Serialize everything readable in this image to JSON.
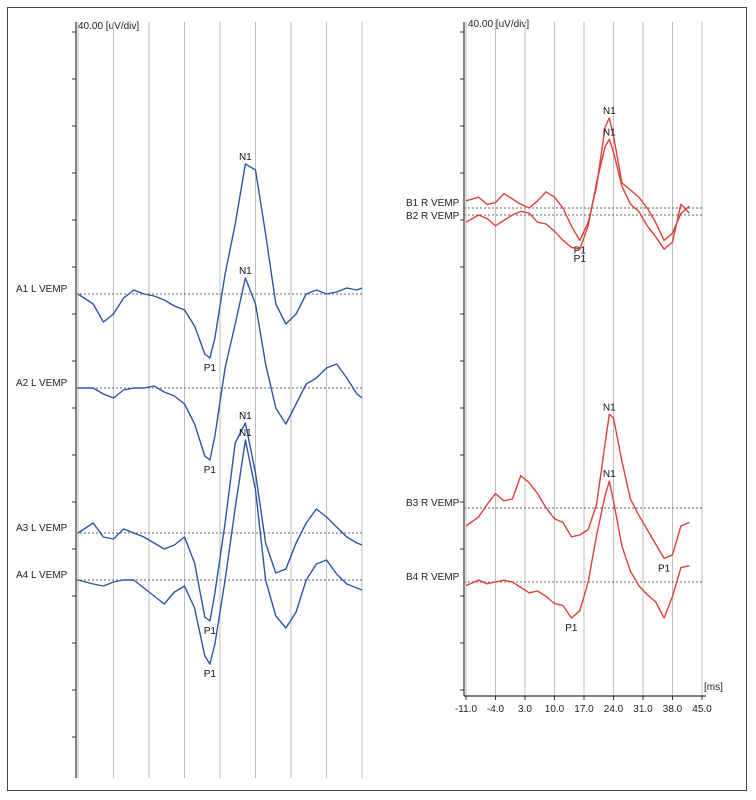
{
  "left_panel": {
    "scale_label": "40.00 [uV/div]",
    "traces": [
      {
        "label": "A1 L VEMP",
        "peaks": [
          "N1",
          "P1"
        ]
      },
      {
        "label": "A2 L VEMP",
        "peaks": [
          "N1",
          "P1"
        ]
      },
      {
        "label": "A3 L VEMP",
        "peaks": [
          "N1",
          "P1"
        ]
      },
      {
        "label": "A4 L VEMP",
        "peaks": [
          "N1",
          "P1"
        ]
      }
    ]
  },
  "right_panel": {
    "scale_label": "40.00 [uV/div]",
    "x_unit": "[ms]",
    "traces": [
      {
        "label": "B1 R VEMP",
        "peaks": [
          "N1",
          "P1"
        ]
      },
      {
        "label": "B2 R VEMP",
        "peaks": [
          "N1",
          "P1"
        ]
      },
      {
        "label": "B3 R VEMP",
        "peaks": [
          "N1",
          "P1"
        ]
      },
      {
        "label": "B4 R VEMP",
        "peaks": [
          "N1",
          "P1"
        ]
      }
    ]
  },
  "colors": {
    "left_series": "#2a55a8",
    "right_series": "#e0403a",
    "grid": "#bdbdbd",
    "baseline": "#666666"
  },
  "chart_data": [
    {
      "type": "line",
      "title": "",
      "xlabel": "",
      "ylabel": "40.00 [uV/div]",
      "grid": true,
      "series": [
        {
          "name": "A1 L VEMP",
          "x": [
            -11,
            -8,
            -6,
            -4,
            -2,
            0,
            2,
            4,
            6,
            8,
            10,
            12,
            14,
            15,
            16,
            18,
            20,
            22,
            24,
            26,
            28,
            30,
            32,
            34,
            36,
            38,
            40,
            42,
            44,
            45
          ],
          "values": [
            0,
            -0.5,
            -1.4,
            -1.0,
            -0.2,
            0.2,
            0,
            -0.1,
            -0.3,
            -0.6,
            -0.8,
            -1.6,
            -3.0,
            -3.2,
            -2.2,
            1.0,
            3.5,
            6.5,
            6.2,
            3.0,
            -0.5,
            -1.5,
            -1.0,
            0,
            0.2,
            0,
            0.1,
            0.3,
            0.2,
            0.3
          ]
        },
        {
          "name": "A2 L VEMP",
          "x": [
            -11,
            -8,
            -6,
            -4,
            -2,
            0,
            2,
            4,
            6,
            8,
            10,
            12,
            14,
            15,
            16,
            18,
            20,
            22,
            24,
            26,
            28,
            30,
            32,
            34,
            36,
            38,
            40,
            42,
            44,
            45
          ],
          "values": [
            0,
            0,
            -0.3,
            -0.5,
            -0.1,
            0,
            0,
            0.1,
            -0.2,
            -0.4,
            -0.8,
            -1.8,
            -3.4,
            -3.6,
            -2.4,
            1.0,
            3.2,
            5.5,
            4.2,
            1.2,
            -1.0,
            -1.8,
            -0.8,
            0.2,
            0.5,
            1.0,
            1.2,
            0.5,
            -0.3,
            -0.5
          ]
        },
        {
          "name": "A3 L VEMP",
          "x": [
            -11,
            -8,
            -6,
            -4,
            -2,
            0,
            2,
            4,
            6,
            8,
            10,
            12,
            14,
            15,
            16,
            18,
            20,
            22,
            24,
            26,
            28,
            30,
            32,
            34,
            36,
            38,
            40,
            42,
            44,
            45
          ],
          "values": [
            0,
            0.5,
            -0.2,
            -0.3,
            0.2,
            0,
            -0.2,
            -0.5,
            -0.8,
            -0.6,
            -0.2,
            -1.5,
            -4.2,
            -4.4,
            -3.0,
            0.5,
            4.5,
            5.5,
            3.0,
            -0.5,
            -2.0,
            -1.8,
            -0.5,
            0.5,
            1.2,
            0.8,
            0.3,
            -0.2,
            -0.5,
            -0.6
          ]
        },
        {
          "name": "A4 L VEMP",
          "x": [
            -11,
            -8,
            -6,
            -4,
            -2,
            0,
            2,
            4,
            6,
            8,
            10,
            12,
            14,
            15,
            16,
            18,
            20,
            22,
            24,
            26,
            28,
            30,
            32,
            34,
            36,
            38,
            40,
            42,
            44,
            45
          ],
          "values": [
            0,
            -0.2,
            -0.3,
            -0.1,
            0,
            0,
            -0.4,
            -0.8,
            -1.2,
            -0.6,
            -0.3,
            -1.4,
            -3.8,
            -4.2,
            -3.2,
            0,
            3.6,
            7.0,
            4.5,
            0,
            -1.8,
            -2.4,
            -1.6,
            0,
            0.8,
            1.0,
            0.3,
            -0.2,
            -0.4,
            -0.5
          ]
        }
      ]
    },
    {
      "type": "line",
      "title": "",
      "xlabel": "[ms]",
      "ylabel": "40.00 [uV/div]",
      "xlim": [
        -11,
        45
      ],
      "x_ticks": [
        "-11.0",
        "-4.0",
        "3.0",
        "10.0",
        "17.0",
        "24.0",
        "31.0",
        "38.0",
        "45.0"
      ],
      "grid": true,
      "series": [
        {
          "name": "B1 R VEMP",
          "x": [
            -11,
            -8,
            -6,
            -4,
            -2,
            0,
            2,
            4,
            6,
            8,
            10,
            12,
            14,
            16,
            18,
            20,
            22,
            23,
            24,
            26,
            28,
            30,
            32,
            34,
            36,
            38,
            40,
            42
          ],
          "values": [
            0.4,
            0.6,
            0.2,
            0.3,
            0.8,
            0.5,
            0.2,
            0,
            0.4,
            0.9,
            0.6,
            0,
            -1.0,
            -1.8,
            -0.8,
            1.2,
            4.5,
            5.0,
            4.0,
            1.4,
            1.0,
            0.6,
            0,
            -0.8,
            -1.8,
            -1.4,
            -0.3,
            0.1
          ]
        },
        {
          "name": "B2 R VEMP",
          "x": [
            -11,
            -8,
            -6,
            -4,
            -2,
            0,
            2,
            4,
            6,
            8,
            10,
            12,
            14,
            16,
            18,
            20,
            22,
            23,
            24,
            26,
            28,
            30,
            32,
            34,
            36,
            38,
            40,
            42
          ],
          "values": [
            -0.4,
            0,
            -0.2,
            -0.6,
            -0.3,
            0,
            0.2,
            0.1,
            -0.4,
            -0.5,
            -0.9,
            -1.4,
            -1.8,
            -1.9,
            -0.6,
            1.8,
            3.8,
            4.2,
            3.5,
            1.6,
            0.6,
            0.2,
            -0.6,
            -1.2,
            -1.9,
            -1.5,
            0.6,
            0.1
          ]
        },
        {
          "name": "B3 R VEMP",
          "x": [
            -11,
            -8,
            -6,
            -4,
            -2,
            0,
            2,
            4,
            6,
            8,
            10,
            12,
            14,
            16,
            18,
            20,
            22,
            23,
            24,
            26,
            28,
            30,
            32,
            34,
            36,
            38,
            40,
            42
          ],
          "values": [
            -1.0,
            -0.5,
            0.2,
            0.8,
            0.4,
            0.5,
            1.8,
            1.4,
            0.8,
            0,
            -0.6,
            -0.8,
            -1.6,
            -1.5,
            -1.2,
            0.2,
            3.6,
            5.2,
            5.0,
            2.6,
            0.5,
            -0.4,
            -1.2,
            -2.0,
            -2.8,
            -2.6,
            -1.0,
            -0.8
          ]
        },
        {
          "name": "B4 R VEMP",
          "x": [
            -11,
            -8,
            -6,
            -4,
            -2,
            0,
            2,
            4,
            6,
            8,
            10,
            12,
            14,
            16,
            18,
            20,
            22,
            23,
            24,
            26,
            28,
            30,
            32,
            34,
            36,
            38,
            40,
            42
          ],
          "values": [
            -0.2,
            0.1,
            -0.1,
            0,
            0.1,
            0,
            -0.3,
            -0.6,
            -0.5,
            -0.8,
            -1.2,
            -1.3,
            -2.0,
            -1.6,
            0,
            2.6,
            4.8,
            5.6,
            4.5,
            2.0,
            0.6,
            -0.2,
            -0.7,
            -1.1,
            -2.0,
            -0.8,
            0.8,
            0.9
          ]
        }
      ]
    }
  ]
}
